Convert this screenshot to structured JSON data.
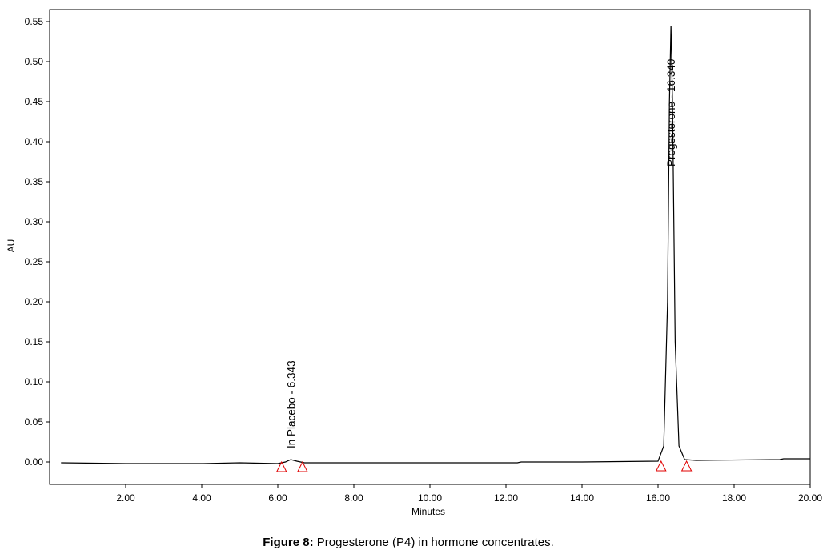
{
  "chart_data": {
    "type": "line",
    "x_label": "Minutes",
    "y_label": "AU",
    "xlim": [
      0,
      20
    ],
    "ylim": [
      -0.028,
      0.565
    ],
    "xticks": [
      {
        "value": 2,
        "label": "2.00"
      },
      {
        "value": 4,
        "label": "4.00"
      },
      {
        "value": 6,
        "label": "6.00"
      },
      {
        "value": 8,
        "label": "8.00"
      },
      {
        "value": 10,
        "label": "10.00"
      },
      {
        "value": 12,
        "label": "12.00"
      },
      {
        "value": 14,
        "label": "14.00"
      },
      {
        "value": 16,
        "label": "16.00"
      },
      {
        "value": 18,
        "label": "18.00"
      },
      {
        "value": 20,
        "label": "20.00"
      }
    ],
    "yticks": [
      {
        "value": 0,
        "label": "0.00"
      },
      {
        "value": 0.05,
        "label": "0.05"
      },
      {
        "value": 0.1,
        "label": "0.10"
      },
      {
        "value": 0.15,
        "label": "0.15"
      },
      {
        "value": 0.2,
        "label": "0.20"
      },
      {
        "value": 0.25,
        "label": "0.25"
      },
      {
        "value": 0.3,
        "label": "0.30"
      },
      {
        "value": 0.35,
        "label": "0.35"
      },
      {
        "value": 0.4,
        "label": "0.40"
      },
      {
        "value": 0.45,
        "label": "0.45"
      },
      {
        "value": 0.5,
        "label": "0.50"
      },
      {
        "value": 0.55,
        "label": "0.55"
      }
    ],
    "x": [
      0.3,
      2,
      4,
      5,
      6.0,
      6.2,
      6.343,
      6.5,
      6.7,
      8,
      10,
      12,
      12.3,
      12.4,
      14,
      16.0,
      16.15,
      16.25,
      16.3,
      16.34,
      16.38,
      16.45,
      16.55,
      16.7,
      17,
      19.2,
      19.3,
      20
    ],
    "series": [
      {
        "color": "#000000",
        "values": [
          -0.001,
          -0.002,
          -0.002,
          -0.001,
          -0.002,
          0.0,
          0.003,
          0.001,
          -0.001,
          -0.001,
          -0.001,
          -0.001,
          -0.001,
          0.0,
          0.0,
          0.001,
          0.02,
          0.2,
          0.45,
          0.545,
          0.45,
          0.15,
          0.02,
          0.003,
          0.002,
          0.003,
          0.004,
          0.004
        ]
      }
    ],
    "annotations": [
      {
        "text": "In Placebo - 6.343",
        "x": 6.343
      },
      {
        "text": "Progesterone - 16.340",
        "x": 16.34
      }
    ],
    "integration_marks": {
      "color": "#e00000",
      "x": [
        6.1,
        6.65,
        16.08,
        16.75
      ],
      "y": [
        -0.006,
        -0.006,
        -0.005,
        -0.005
      ]
    }
  },
  "caption": {
    "label": "Figure 8:",
    "text": "Progesterone (P4) in hormone concentrates."
  }
}
